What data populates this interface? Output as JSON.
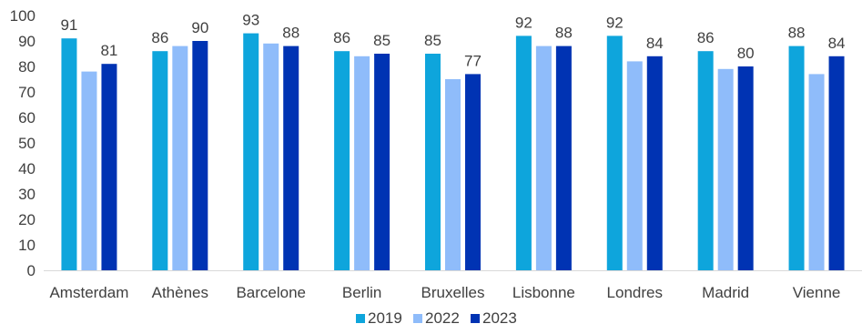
{
  "chart_data": {
    "type": "bar",
    "title": "",
    "xlabel": "",
    "ylabel": "",
    "ylim": [
      0,
      100
    ],
    "yticks": [
      "0",
      "10",
      "20",
      "30",
      "40",
      "50",
      "60",
      "70",
      "80",
      "90",
      "100"
    ],
    "grid": false,
    "legend_position": "bottom-center",
    "categories": [
      "Amsterdam",
      "Athènes",
      "Barcelone",
      "Berlin",
      "Bruxelles",
      "Lisbonne",
      "Londres",
      "Madrid",
      "Vienne"
    ],
    "series": [
      {
        "name": "2019",
        "color": "#0ea5dc",
        "values": [
          91,
          86,
          93,
          86,
          85,
          92,
          92,
          86,
          88
        ],
        "labels": [
          "91",
          "86",
          "93",
          "86",
          "85",
          "92",
          "92",
          "86",
          "88"
        ]
      },
      {
        "name": "2022",
        "color": "#8fbcfa",
        "values": [
          78,
          88,
          89,
          84,
          75,
          88,
          82,
          79,
          77
        ],
        "labels": [
          "",
          "",
          "",
          "",
          "",
          "",
          "",
          "",
          ""
        ]
      },
      {
        "name": "2023",
        "color": "#0033b3",
        "values": [
          81,
          90,
          88,
          85,
          77,
          88,
          84,
          80,
          84
        ],
        "labels": [
          "81",
          "90",
          "88",
          "85",
          "77",
          "88",
          "84",
          "80",
          "84"
        ]
      }
    ]
  }
}
